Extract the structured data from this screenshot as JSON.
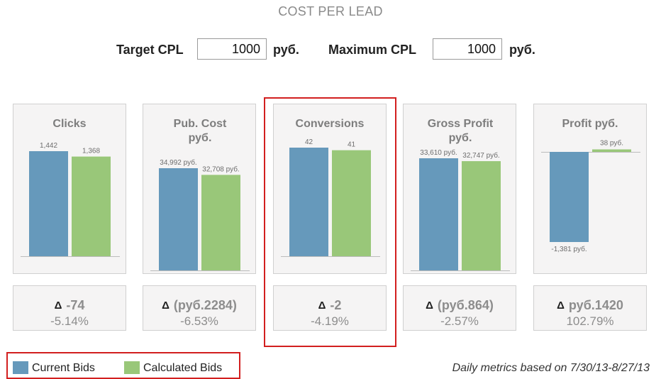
{
  "page": {
    "title": "COST PER LEAD"
  },
  "controls": {
    "target": {
      "label": "Target CPL",
      "value": "1000",
      "unit": "руб."
    },
    "maximum": {
      "label": "Maximum CPL",
      "value": "1000",
      "unit": "руб."
    }
  },
  "colors": {
    "current": "#6699bb",
    "calculated": "#99c779",
    "highlight": "#d21f1f"
  },
  "chart_data": [
    {
      "type": "bar",
      "title": "Clicks",
      "categories": [
        "Current Bids",
        "Calculated Bids"
      ],
      "values": [
        1442,
        1368
      ],
      "labels": [
        "1,442",
        "1,368"
      ]
    },
    {
      "type": "bar",
      "title": "Pub. Cost руб.",
      "categories": [
        "Current Bids",
        "Calculated Bids"
      ],
      "values": [
        34992,
        32708
      ],
      "labels": [
        "34,992 руб.",
        "32,708 руб."
      ]
    },
    {
      "type": "bar",
      "title": "Conversions",
      "categories": [
        "Current Bids",
        "Calculated Bids"
      ],
      "values": [
        42,
        41
      ],
      "labels": [
        "42",
        "41"
      ]
    },
    {
      "type": "bar",
      "title": "Gross Profit руб.",
      "categories": [
        "Current Bids",
        "Calculated Bids"
      ],
      "values": [
        33610,
        32747
      ],
      "labels": [
        "33,610 руб.",
        "32,747 руб."
      ]
    },
    {
      "type": "bar",
      "title": "Profit руб.",
      "categories": [
        "Current Bids",
        "Calculated Bids"
      ],
      "values": [
        -1381,
        38
      ],
      "labels": [
        "-1,381 руб.",
        "38 руб."
      ]
    }
  ],
  "deltas": [
    {
      "value": "-74",
      "percent": "-5.14%"
    },
    {
      "value": "(руб.2284)",
      "percent": "-6.53%"
    },
    {
      "value": "-2",
      "percent": "-4.19%"
    },
    {
      "value": "(руб.864)",
      "percent": "-2.57%"
    },
    {
      "value": "руб.1420",
      "percent": "102.79%"
    }
  ],
  "delta_icon": "delta-icon",
  "legend": [
    {
      "label": "Current Bids",
      "color": "#6699bb"
    },
    {
      "label": "Calculated Bids",
      "color": "#99c779"
    }
  ],
  "footer": {
    "note": "Daily metrics based on 7/30/13-8/27/13"
  }
}
